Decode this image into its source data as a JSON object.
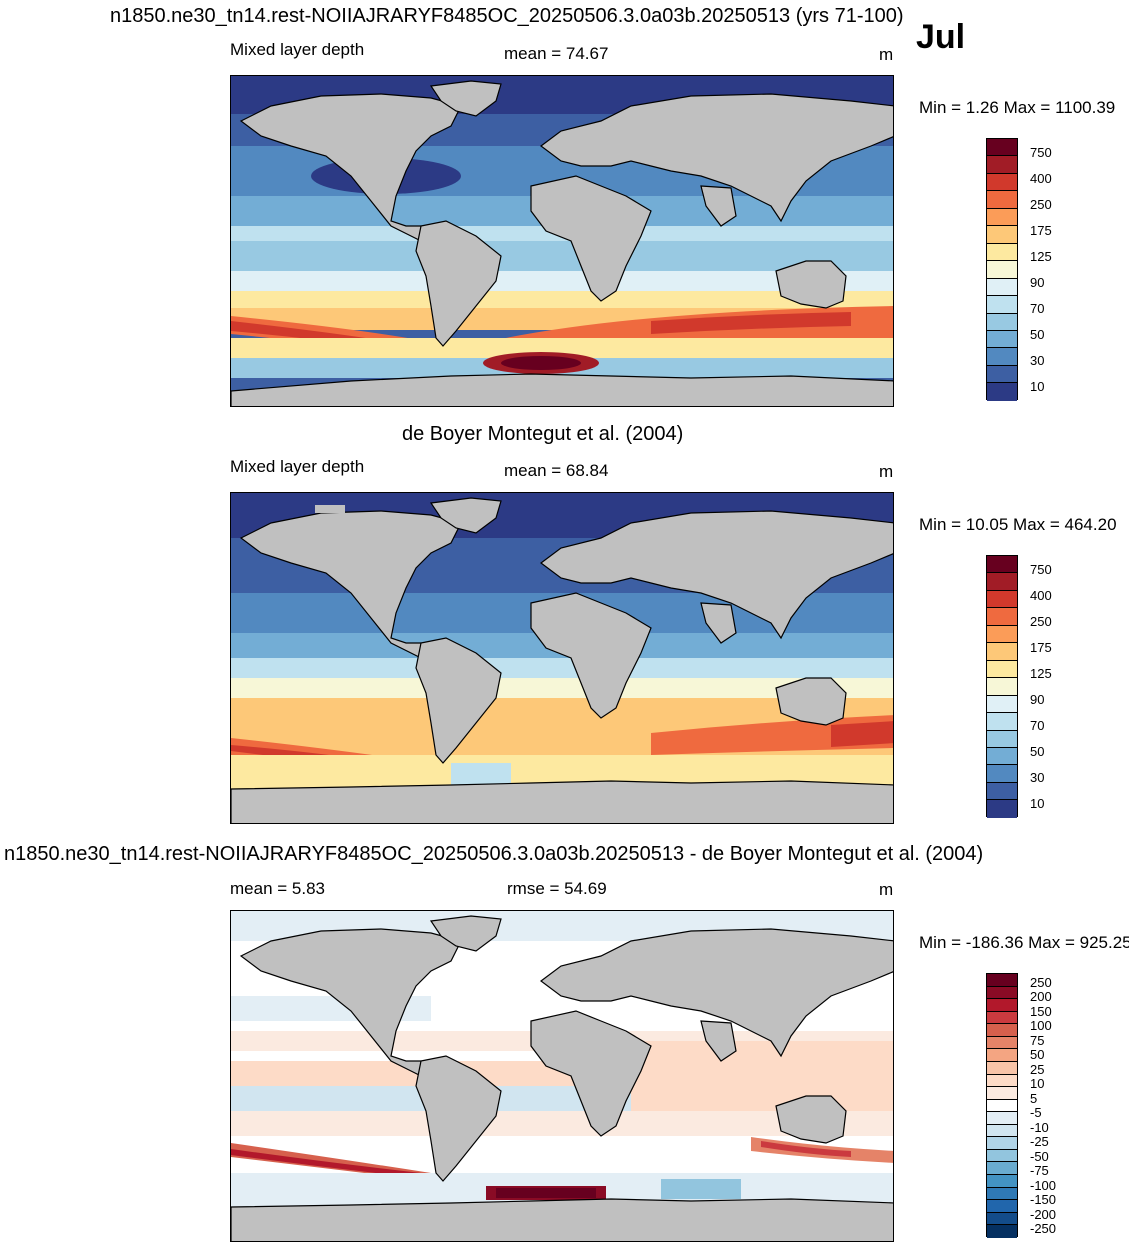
{
  "header": {
    "title": "n1850.ne30_tn14.rest-NOIIAJRARYF8485OC_20250506.3.0a03b.20250513 (yrs 71-100)",
    "month": "Jul"
  },
  "panels": [
    {
      "variable": "Mixed layer depth",
      "stat_label": "mean =  74.67",
      "units": "m",
      "minmax": "Min =   1.26 Max = 1100.39",
      "colorbar": {
        "labels": [
          "750",
          "400",
          "250",
          "175",
          "125",
          "90",
          "70",
          "50",
          "30",
          "10"
        ],
        "colors": [
          "#67001f",
          "#a11c26",
          "#d1392c",
          "#ef6a3f",
          "#fb9c58",
          "#fdc878",
          "#fde9a0",
          "#f7f7d7",
          "#e0f0f6",
          "#bfe1ef",
          "#98c9e2",
          "#73add5",
          "#5289c0",
          "#3d5fa3",
          "#2c3a85"
        ]
      }
    },
    {
      "title": "de Boyer Montegut et al. (2004)",
      "variable": "Mixed layer depth",
      "stat_label": "mean =  68.84",
      "units": "m",
      "minmax": "Min =  10.05 Max = 464.20",
      "colorbar": {
        "labels": [
          "750",
          "400",
          "250",
          "175",
          "125",
          "90",
          "70",
          "50",
          "30",
          "10"
        ],
        "colors": [
          "#67001f",
          "#a11c26",
          "#d1392c",
          "#ef6a3f",
          "#fb9c58",
          "#fdc878",
          "#fde9a0",
          "#f7f7d7",
          "#e0f0f6",
          "#bfe1ef",
          "#98c9e2",
          "#73add5",
          "#5289c0",
          "#3d5fa3",
          "#2c3a85"
        ]
      }
    },
    {
      "title": "n1850.ne30_tn14.rest-NOIIAJRARYF8485OC_20250506.3.0a03b.20250513 - de Boyer Montegut et al. (2004)",
      "stat_label": "mean =   5.83",
      "rmse_label": "rmse =  54.69",
      "units": "m",
      "minmax": "Min = -186.36 Max = 925.25",
      "colorbar": {
        "labels": [
          "250",
          "200",
          "150",
          "100",
          "75",
          "50",
          "25",
          "10",
          "5",
          "-5",
          "-10",
          "-25",
          "-50",
          "-75",
          "-100",
          "-150",
          "-200",
          "-250"
        ],
        "colors": [
          "#67001f",
          "#8a0b25",
          "#b2182b",
          "#cb3a3f",
          "#d6604d",
          "#e58368",
          "#f4a582",
          "#f8c4a8",
          "#fddbc7",
          "#fbeae0",
          "#ffffff",
          "#e3eef5",
          "#d1e5f0",
          "#b1d4e7",
          "#92c5de",
          "#6aacd0",
          "#4393c3",
          "#2f79b5",
          "#2166ac",
          "#134c8a",
          "#053061"
        ]
      }
    }
  ],
  "colors": {
    "land": "#c0c0c0",
    "coast": "#000000"
  }
}
